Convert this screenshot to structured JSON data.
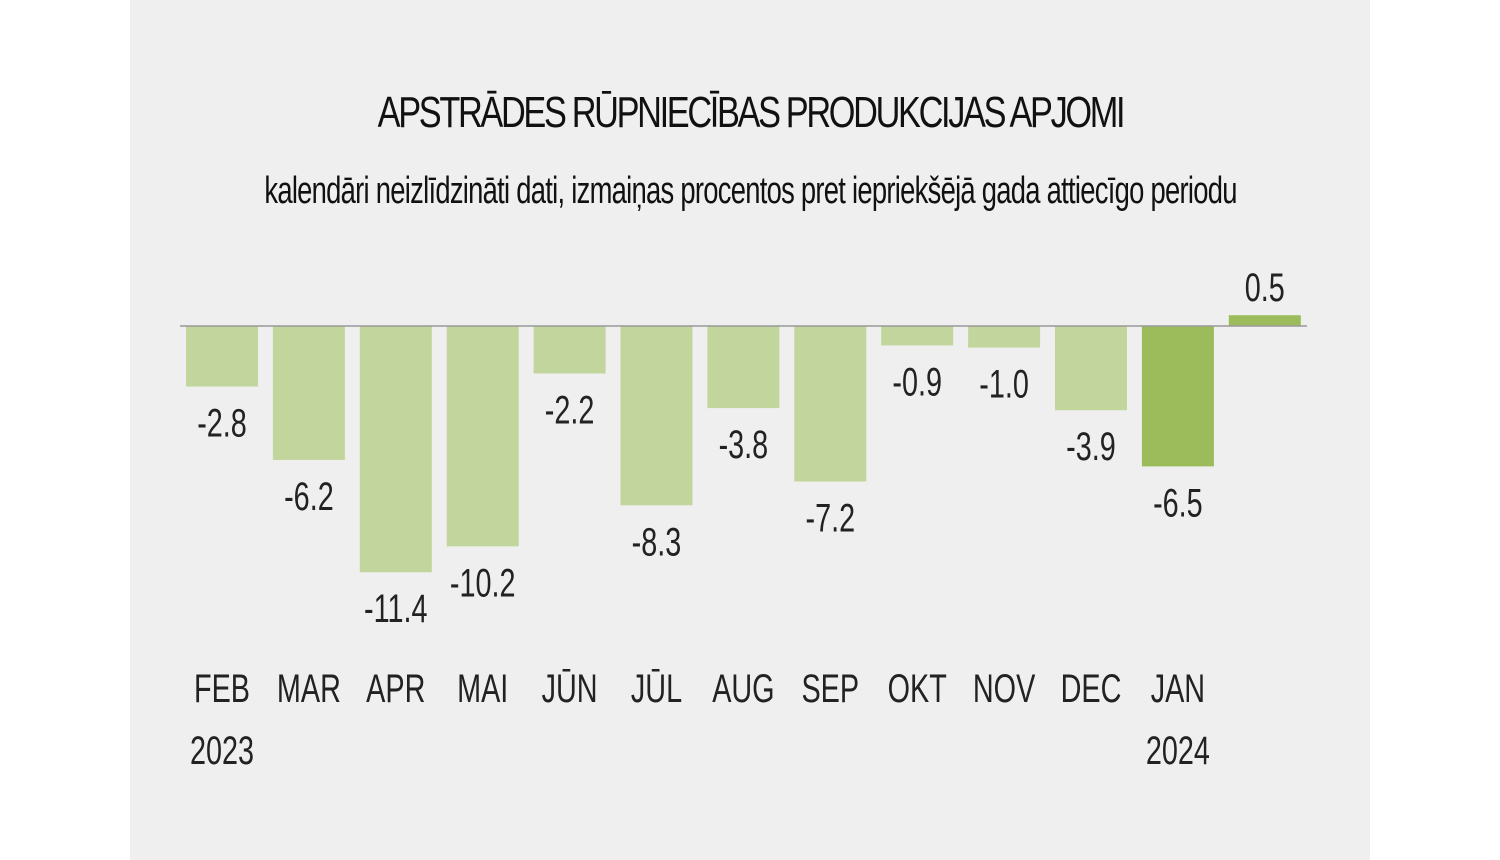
{
  "chart_data": {
    "type": "bar",
    "title": "APSTRĀDES RŪPNIECĪBAS PRODUKCIJAS APJOMI",
    "subtitle": "kalendāri neizlīdzināti dati, izmaiņas procentos pret iepriekšējā gada attiecīgo periodu",
    "categories": [
      "FEB",
      "MAR",
      "APR",
      "MAI",
      "JŪN",
      "JŪL",
      "AUG",
      "SEP",
      "OKT",
      "NOV",
      "DEC",
      "JAN",
      ""
    ],
    "years": [
      "2023",
      "",
      "",
      "",
      "",
      "",
      "",
      "",
      "",
      "",
      "",
      "2024",
      ""
    ],
    "values": [
      -2.8,
      -6.2,
      -11.4,
      -10.2,
      -2.2,
      -8.3,
      -3.8,
      -7.2,
      -0.9,
      -1.0,
      -3.9,
      -6.5,
      0.5
    ],
    "value_labels": [
      "-2.8",
      "-6.2",
      "-11.4",
      "-10.2",
      "-2.2",
      "-8.3",
      "-3.8",
      "-7.2",
      "-0.9",
      "-1.0",
      "-3.9",
      "-6.5",
      "0.5"
    ],
    "highlight_index": 11,
    "colors": {
      "bar": "#c2d59c",
      "bar_highlight": "#9cbb5a",
      "bar_positive": "#9cbb5a",
      "axis": "#999999",
      "background": "#efefef"
    },
    "xlabel": "",
    "ylabel": "",
    "grid": false
  }
}
